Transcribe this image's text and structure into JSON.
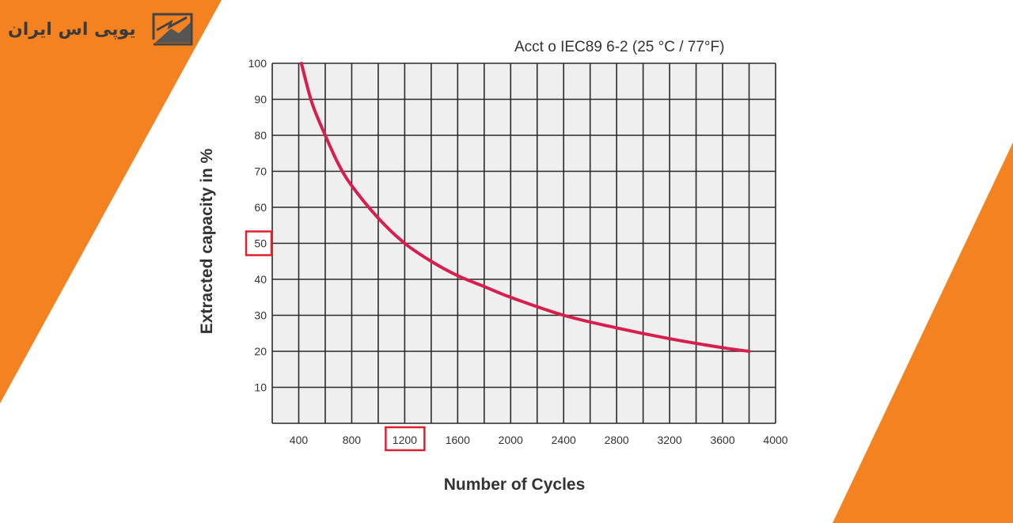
{
  "brand": {
    "logo_text": "یوپی اس ایران",
    "colors": {
      "orange": "#f58220",
      "curve": "#d81e4f",
      "highlight": "#e0202e"
    }
  },
  "chart_data": {
    "type": "line",
    "title": "Acct o IEC89  6-2 (25 °C / 77°F)",
    "xlabel": "Number of Cycles",
    "ylabel": "Extracted capacity in %",
    "xlim": [
      200,
      4000
    ],
    "ylim": [
      0,
      100
    ],
    "xticks": [
      400,
      800,
      1200,
      1600,
      2000,
      2400,
      2800,
      3200,
      3600,
      4000
    ],
    "yticks": [
      10,
      20,
      30,
      40,
      50,
      60,
      70,
      80,
      90,
      100
    ],
    "grid": true,
    "highlighted_ticks": {
      "x": 1200,
      "y": 50
    },
    "series": [
      {
        "name": "capacity",
        "x": [
          420,
          500,
          600,
          700,
          800,
          1000,
          1200,
          1400,
          1600,
          1800,
          2000,
          2400,
          2800,
          3200,
          3600,
          3800
        ],
        "y": [
          100,
          89,
          80,
          72,
          66,
          57,
          50,
          45,
          41,
          38,
          35,
          30,
          26.5,
          23.5,
          21,
          20
        ]
      }
    ]
  }
}
